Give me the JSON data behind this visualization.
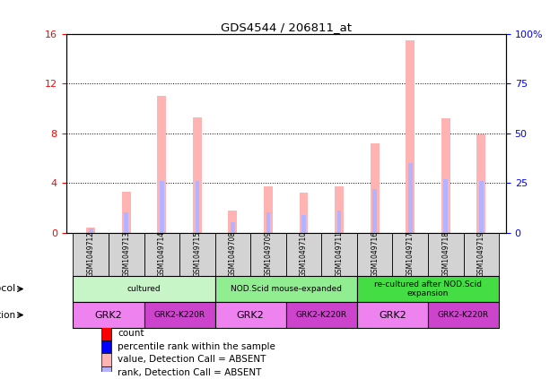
{
  "title": "GDS4544 / 206811_at",
  "samples": [
    "GSM1049712",
    "GSM1049713",
    "GSM1049714",
    "GSM1049715",
    "GSM1049708",
    "GSM1049709",
    "GSM1049710",
    "GSM1049711",
    "GSM1049716",
    "GSM1049717",
    "GSM1049718",
    "GSM1049719"
  ],
  "absent_values": [
    0.4,
    3.3,
    11.0,
    9.3,
    1.8,
    3.7,
    3.2,
    3.7,
    7.2,
    15.5,
    9.2,
    7.9
  ],
  "absent_ranks": [
    2.0,
    10.0,
    26.0,
    26.0,
    5.0,
    10.0,
    9.0,
    11.0,
    22.0,
    35.0,
    27.0,
    26.0
  ],
  "ylim_left": [
    0,
    16
  ],
  "ylim_right": [
    0,
    100
  ],
  "yticks_left": [
    0,
    4,
    8,
    12,
    16
  ],
  "yticks_right": [
    0,
    25,
    50,
    75,
    100
  ],
  "ytick_labels_right": [
    "0",
    "25",
    "50",
    "75",
    "100%"
  ],
  "color_absent_bar": "#ffb3b3",
  "color_absent_rank": "#b3b3ff",
  "color_present_bar": "#ff0000",
  "color_present_rank": "#0000ff",
  "protocol_groups": [
    {
      "label": "cultured",
      "start": 0,
      "end": 4,
      "color": "#c8f5c8"
    },
    {
      "label": "NOD.Scid mouse-expanded",
      "start": 4,
      "end": 8,
      "color": "#90ee90"
    },
    {
      "label": "re-cultured after NOD.Scid\nexpansion",
      "start": 8,
      "end": 12,
      "color": "#44dd44"
    }
  ],
  "genotype_groups": [
    {
      "label": "GRK2",
      "start": 0,
      "end": 2,
      "color": "#ee82ee"
    },
    {
      "label": "GRK2-K220R",
      "start": 2,
      "end": 4,
      "color": "#cc44cc"
    },
    {
      "label": "GRK2",
      "start": 4,
      "end": 6,
      "color": "#ee82ee"
    },
    {
      "label": "GRK2-K220R",
      "start": 6,
      "end": 8,
      "color": "#cc44cc"
    },
    {
      "label": "GRK2",
      "start": 8,
      "end": 10,
      "color": "#ee82ee"
    },
    {
      "label": "GRK2-K220R",
      "start": 10,
      "end": 12,
      "color": "#cc44cc"
    }
  ],
  "tick_color_left": "#ff0000",
  "tick_color_right": "#0000ff",
  "background_color": "#ffffff",
  "sample_box_color": "#d3d3d3"
}
